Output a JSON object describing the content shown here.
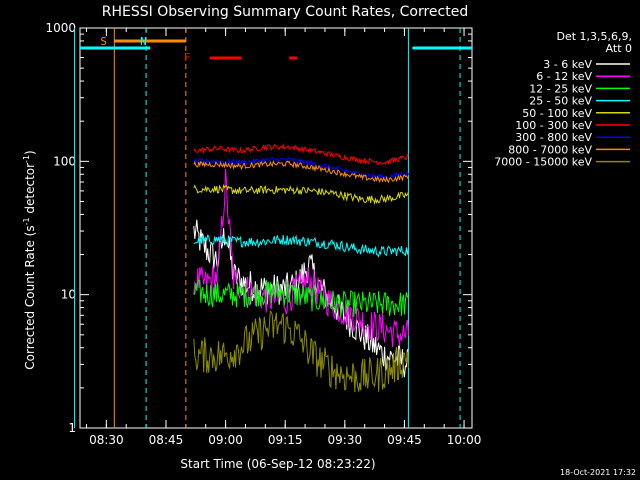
{
  "chart_data": {
    "type": "line",
    "title": "RHESSI Observing Summary Count Rates, Corrected",
    "xlabel": "Start Time (06-Sep-12 08:23:22)",
    "ylabel": "Corrected Count Rate (s⁻¹ detector⁻¹)",
    "ylabel_main": "Corrected Count Rate (s",
    "ylabel_sup1": "-1",
    "ylabel_mid": " detector",
    "ylabel_sup2": "-1",
    "ylabel_end": ")",
    "yscale": "log",
    "ylim": [
      1,
      1000
    ],
    "xlim": [
      "08:23:22",
      "10:02:00"
    ],
    "x_ticks": [
      "08:30",
      "08:45",
      "09:00",
      "09:15",
      "09:30",
      "09:45",
      "10:00"
    ],
    "y_ticks": [
      "1",
      "10",
      "100",
      "1000"
    ],
    "legend_header": [
      "Det 1,3,5,6,9,",
      "Att 0"
    ],
    "legend_position": "right",
    "timestamp": "18-Oct-2021 17:32",
    "series": [
      {
        "name": "3 - 6 keV",
        "color": "#ffffff",
        "x": [
          "08:52",
          "08:55",
          "08:58",
          "09:00",
          "09:02",
          "09:05",
          "09:10",
          "09:15",
          "09:18",
          "09:21",
          "09:24",
          "09:28",
          "09:32",
          "09:36",
          "09:40",
          "09:44",
          "09:46"
        ],
        "values": [
          30,
          22,
          18,
          30,
          14,
          12,
          11,
          11,
          12,
          17,
          11,
          8,
          6,
          4.5,
          3.5,
          3.2,
          3.0
        ]
      },
      {
        "name": "6 - 12 keV",
        "color": "#ff00ff",
        "x": [
          "08:52",
          "08:55",
          "08:58",
          "09:00",
          "09:02",
          "09:05",
          "09:10",
          "09:15",
          "09:18",
          "09:21",
          "09:24",
          "09:28",
          "09:32",
          "09:36",
          "09:40",
          "09:44",
          "09:46"
        ],
        "values": [
          13,
          12,
          14,
          70,
          13,
          11,
          9.5,
          9,
          11,
          13,
          10,
          8,
          7,
          6,
          5.5,
          5,
          5
        ]
      },
      {
        "name": "12 - 25 keV",
        "color": "#00ff00",
        "x": [
          "08:52",
          "08:58",
          "09:05",
          "09:12",
          "09:18",
          "09:24",
          "09:30",
          "09:36",
          "09:42",
          "09:46"
        ],
        "values": [
          10.5,
          10,
          10,
          10.5,
          10,
          9,
          8.5,
          8.5,
          8.5,
          8.5
        ]
      },
      {
        "name": "25 - 50 keV",
        "color": "#00ffff",
        "x": [
          "08:52",
          "08:58",
          "09:03",
          "09:09",
          "09:15",
          "09:21",
          "09:27",
          "09:33",
          "09:39",
          "09:46"
        ],
        "values": [
          25,
          26,
          25,
          25,
          26,
          25,
          24,
          22,
          21,
          21.5
        ]
      },
      {
        "name": "50 - 100 keV",
        "color": "#d7d700",
        "x": [
          "08:52",
          "08:58",
          "09:04",
          "09:10",
          "09:16",
          "09:22",
          "09:28",
          "09:34",
          "09:40",
          "09:46"
        ],
        "values": [
          62,
          62,
          60,
          61,
          61,
          60,
          57,
          52,
          52,
          56
        ]
      },
      {
        "name": "100 - 300 keV",
        "color": "#ff0000",
        "x": [
          "08:52",
          "08:58",
          "09:04",
          "09:10",
          "09:16",
          "09:22",
          "09:28",
          "09:34",
          "09:40",
          "09:46"
        ],
        "values": [
          120,
          125,
          120,
          128,
          128,
          120,
          110,
          102,
          98,
          108
        ]
      },
      {
        "name": "300 - 800 keV",
        "color": "#0000ff",
        "x": [
          "08:52",
          "08:58",
          "09:04",
          "09:10",
          "09:16",
          "09:22",
          "09:28",
          "09:34",
          "09:40",
          "09:46"
        ],
        "values": [
          100,
          100,
          98,
          102,
          103,
          96,
          88,
          80,
          76,
          81
        ]
      },
      {
        "name": "800 - 7000 keV",
        "color": "#ff8c00",
        "x": [
          "08:52",
          "08:58",
          "09:04",
          "09:10",
          "09:16",
          "09:22",
          "09:28",
          "09:34",
          "09:40",
          "09:46"
        ],
        "values": [
          95,
          95,
          92,
          95,
          96,
          90,
          83,
          76,
          72,
          77
        ]
      },
      {
        "name": "7000 - 15000 keV",
        "color": "#8b8b00",
        "x": [
          "08:52",
          "08:57",
          "09:00",
          "09:06",
          "09:10",
          "09:14",
          "09:18",
          "09:22",
          "09:26",
          "09:30",
          "09:34",
          "09:38",
          "09:42",
          "09:46"
        ],
        "values": [
          3.5,
          3.5,
          3.5,
          4.5,
          5.5,
          6,
          5,
          3.5,
          2.8,
          2.5,
          2.4,
          2.5,
          2.8,
          3.5
        ]
      }
    ],
    "annotations": [
      {
        "label": "S",
        "color": "#ff8c00",
        "x": "08:31"
      },
      {
        "label": "N",
        "color": "#00ffff",
        "x": "08:41"
      },
      {
        "label": "F",
        "color": "#ff0000",
        "x": "08:52"
      }
    ],
    "flags": {
      "saa": {
        "color": "#ff8c00",
        "segments": [
          [
            "08:32",
            "08:50"
          ]
        ]
      },
      "night": {
        "color": "#00ffff",
        "segments": [
          [
            "08:22",
            "08:41"
          ],
          [
            "09:47",
            "10:02"
          ]
        ]
      },
      "flare": {
        "color": "#ff0000",
        "segments": [
          [
            "08:56",
            "09:04"
          ],
          [
            "09:16",
            "09:18"
          ]
        ]
      }
    },
    "vertical_lines": [
      {
        "x": "08:22",
        "style": "solid",
        "color": "#00ffff"
      },
      {
        "x": "08:32",
        "style": "solid",
        "color": "#ff8c00"
      },
      {
        "x": "08:40",
        "style": "dashed",
        "color": "#00ffff"
      },
      {
        "x": "08:50",
        "style": "dashed",
        "color": "#ff8c00"
      },
      {
        "x": "09:46",
        "style": "solid",
        "color": "#00ffff"
      },
      {
        "x": "09:59",
        "style": "dashed",
        "color": "#00ffff"
      }
    ]
  }
}
